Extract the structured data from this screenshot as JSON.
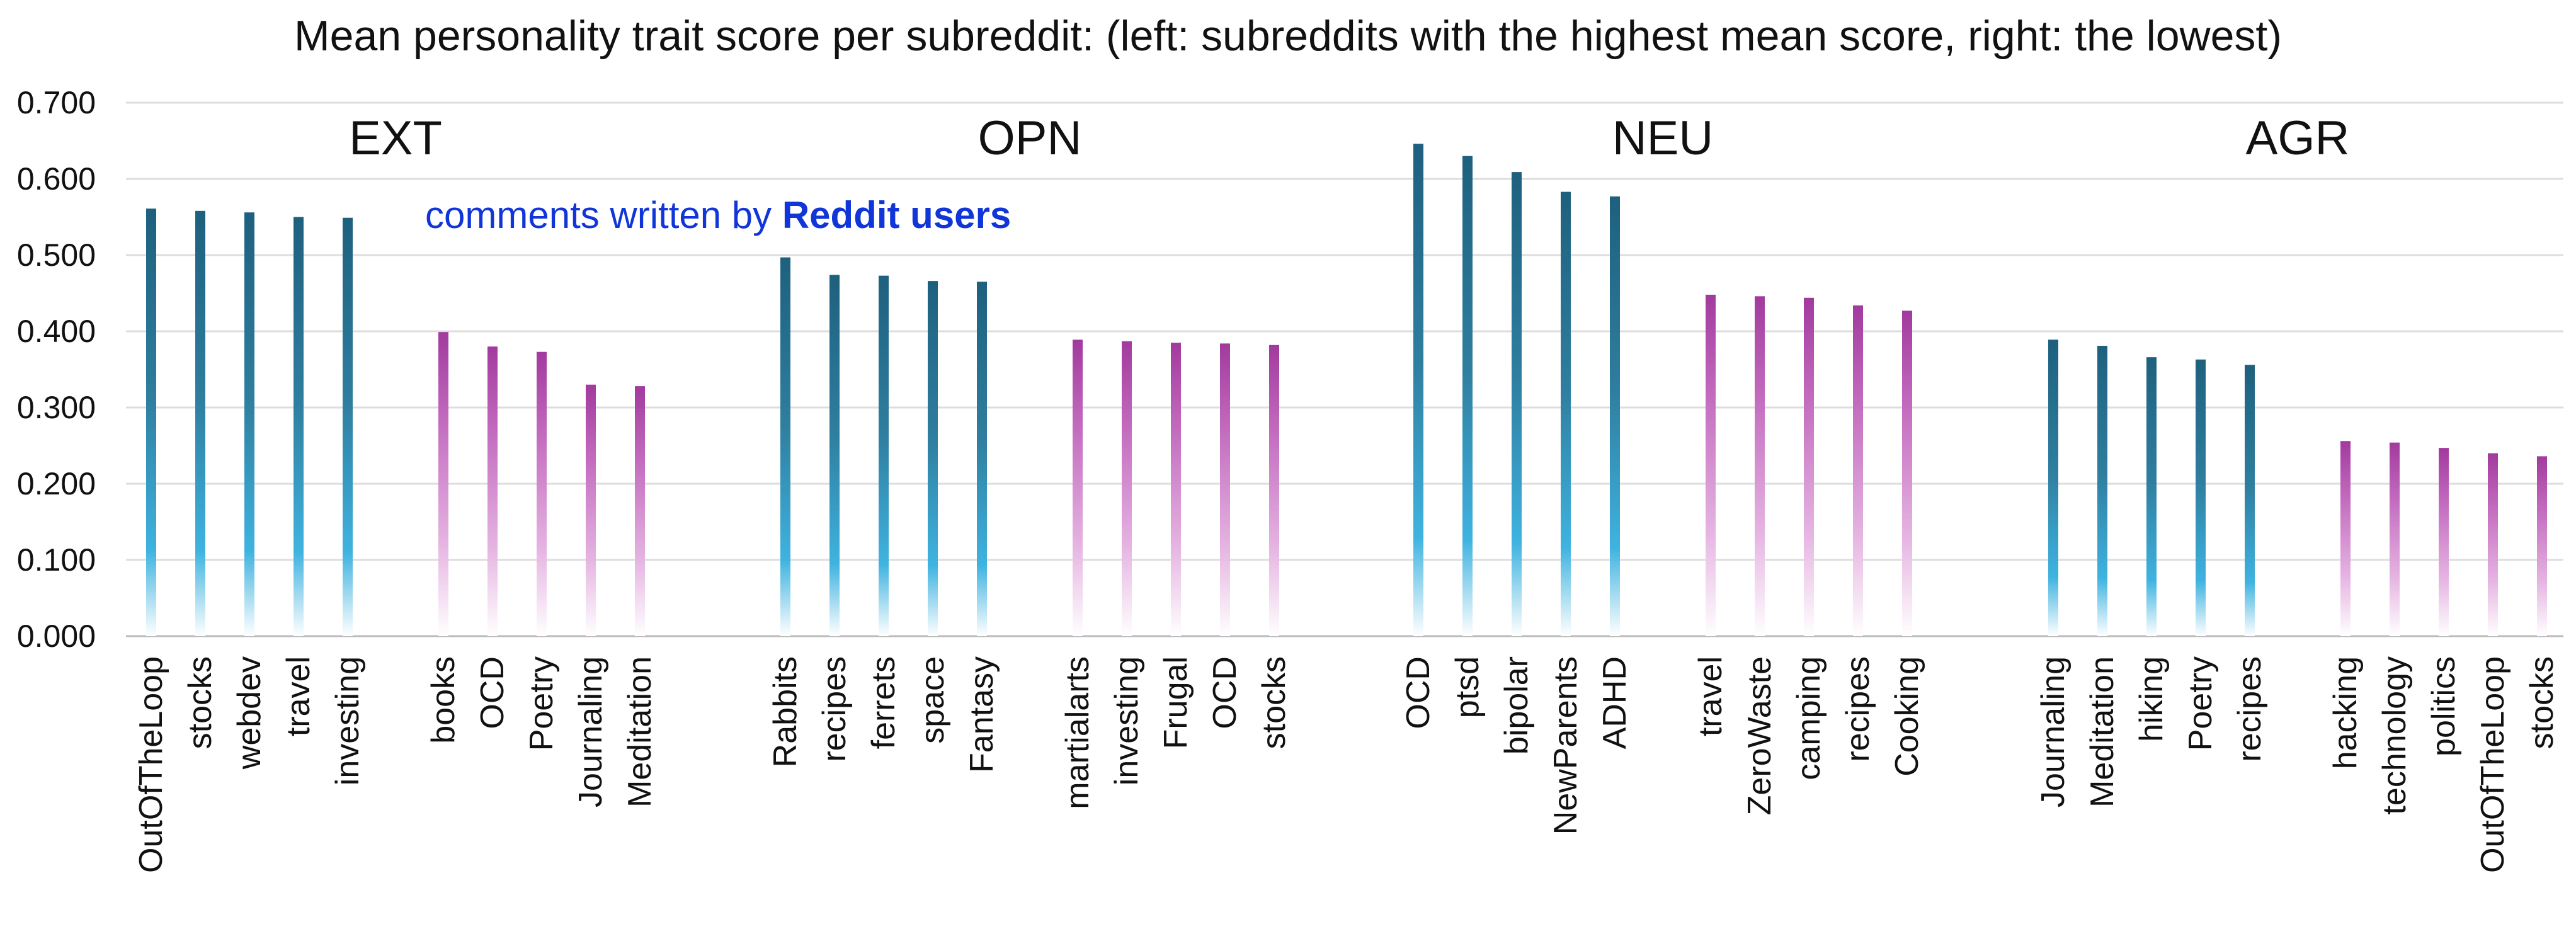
{
  "chart_data": {
    "type": "bar",
    "title": "Mean personality trait score per subreddit: (left: subreddits with the highest mean score, right: the lowest)",
    "ylim": [
      0,
      0.7
    ],
    "yticks": [
      "0.000",
      "0.100",
      "0.200",
      "0.300",
      "0.400",
      "0.500",
      "0.600",
      "0.700"
    ],
    "annotation": {
      "prefix": "comments written by ",
      "emphasis": "Reddit users"
    },
    "colors": {
      "high": "#1e607e",
      "high_mid": "#3fb3e0",
      "low": "#a23a9e",
      "low_mid": "#e6b5e2",
      "annotation": "#1035d8"
    },
    "groups": [
      {
        "name": "EXT",
        "highest": {
          "categories": [
            "OutOfTheLoop",
            "stocks",
            "webdev",
            "travel",
            "investing"
          ],
          "values": [
            0.561,
            0.558,
            0.556,
            0.55,
            0.549
          ]
        },
        "lowest": {
          "categories": [
            "books",
            "OCD",
            "Poetry",
            "Journaling",
            "Meditation"
          ],
          "values": [
            0.399,
            0.38,
            0.373,
            0.33,
            0.328
          ]
        }
      },
      {
        "name": "OPN",
        "highest": {
          "categories": [
            "Rabbits",
            "recipes",
            "ferrets",
            "space",
            "Fantasy"
          ],
          "values": [
            0.497,
            0.474,
            0.473,
            0.466,
            0.465
          ]
        },
        "lowest": {
          "categories": [
            "martialarts",
            "investing",
            "Frugal",
            "OCD",
            "stocks"
          ],
          "values": [
            0.389,
            0.387,
            0.385,
            0.384,
            0.382
          ]
        }
      },
      {
        "name": "NEU",
        "highest": {
          "categories": [
            "OCD",
            "ptsd",
            "bipolar",
            "NewParents",
            "ADHD"
          ],
          "values": [
            0.646,
            0.63,
            0.609,
            0.583,
            0.577
          ]
        },
        "lowest": {
          "categories": [
            "travel",
            "ZeroWaste",
            "camping",
            "recipes",
            "Cooking"
          ],
          "values": [
            0.448,
            0.446,
            0.444,
            0.434,
            0.427
          ]
        }
      },
      {
        "name": "AGR",
        "highest": {
          "categories": [
            "Journaling",
            "Meditation",
            "hiking",
            "Poetry",
            "recipes"
          ],
          "values": [
            0.389,
            0.381,
            0.366,
            0.363,
            0.356
          ]
        },
        "lowest": {
          "categories": [
            "hacking",
            "technology",
            "politics",
            "OutOfTheLoop",
            "stocks"
          ],
          "values": [
            0.256,
            0.254,
            0.247,
            0.24,
            0.236
          ]
        }
      }
    ]
  }
}
